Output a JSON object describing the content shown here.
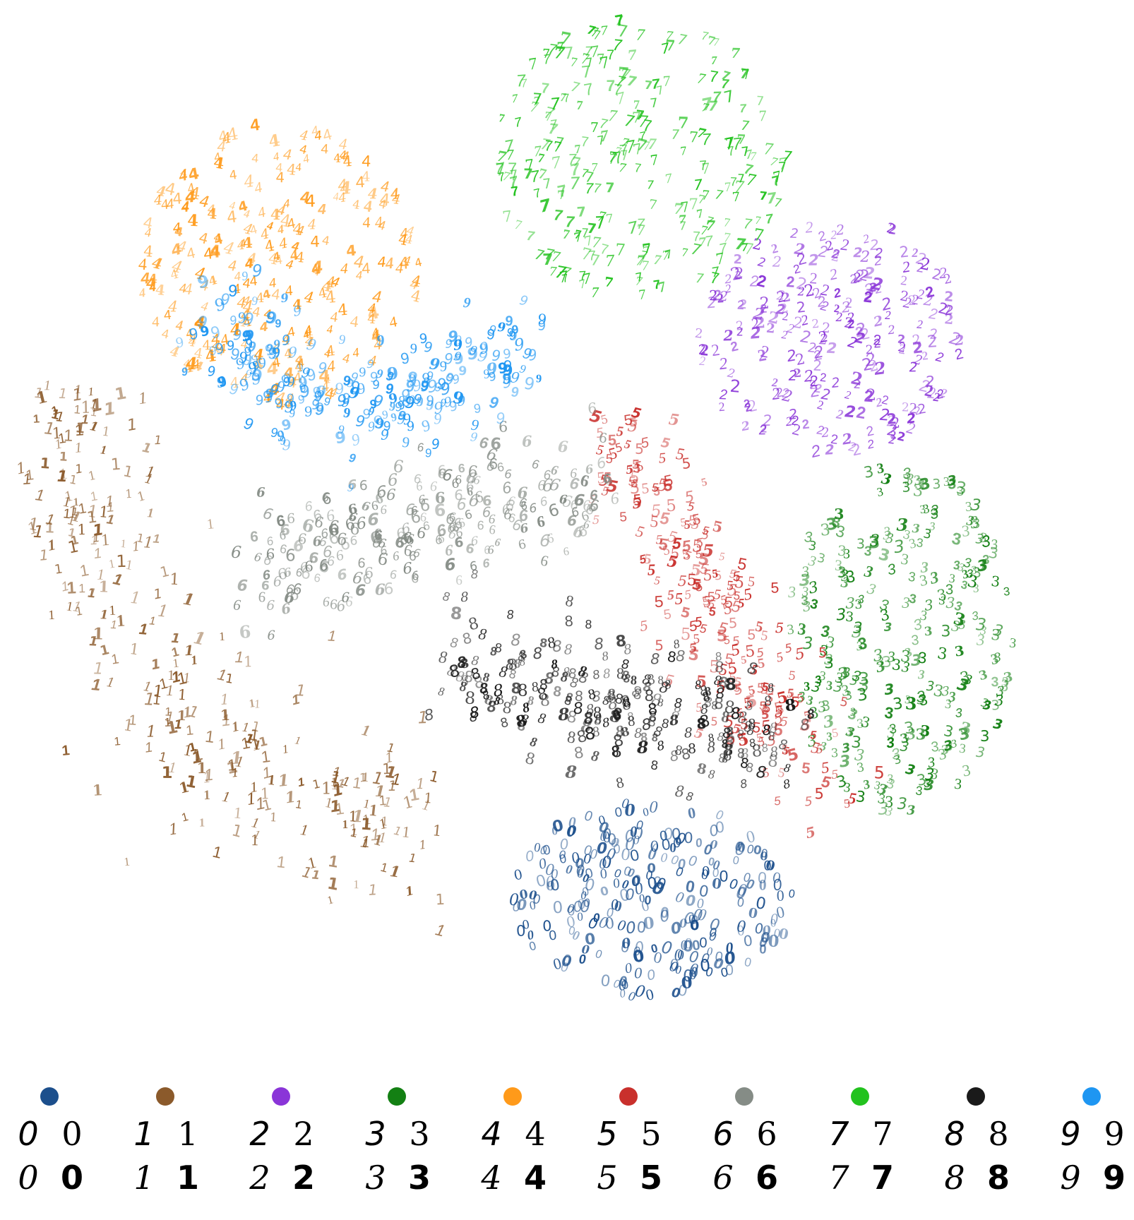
{
  "chart_data": {
    "type": "scatter",
    "title": "",
    "xlabel": "",
    "ylabel": "",
    "grid": false,
    "axes_visible": false,
    "marker": "digit glyph",
    "legend_position": "bottom",
    "series": [
      {
        "name": "0",
        "glyph": "0",
        "color": "#1c4f8c",
        "center": [
          920,
          1280
        ],
        "spread": [
          200,
          140
        ],
        "shape": "blob",
        "count": 260
      },
      {
        "name": "1",
        "glyph": "1",
        "color": "#8b5a2b",
        "center": [
          300,
          940
        ],
        "spread": [
          210,
          330
        ],
        "shape": "arc",
        "count": 300
      },
      {
        "name": "2",
        "glyph": "2",
        "color": "#8a35d8",
        "center": [
          1170,
          480
        ],
        "spread": [
          190,
          170
        ],
        "shape": "blob",
        "count": 240
      },
      {
        "name": "3",
        "glyph": "3",
        "color": "#138013",
        "center": [
          1270,
          910
        ],
        "spread": [
          160,
          250
        ],
        "shape": "blob",
        "count": 270
      },
      {
        "name": "4",
        "glyph": "4",
        "color": "#ff9a1a",
        "center": [
          390,
          380
        ],
        "spread": [
          200,
          200
        ],
        "shape": "blob",
        "count": 260
      },
      {
        "name": "5",
        "glyph": "5",
        "color": "#c9302c",
        "center": [
          1000,
          860
        ],
        "spread": [
          150,
          260
        ],
        "shape": "band",
        "count": 220
      },
      {
        "name": "6",
        "glyph": "6",
        "color": "#858c86",
        "center": [
          590,
          750
        ],
        "spread": [
          240,
          100
        ],
        "shape": "band",
        "count": 230
      },
      {
        "name": "7",
        "glyph": "7",
        "color": "#22c21e",
        "center": [
          900,
          230
        ],
        "spread": [
          210,
          200
        ],
        "shape": "blob",
        "count": 270
      },
      {
        "name": "8",
        "glyph": "8",
        "color": "#1a1a1a",
        "center": [
          860,
          1000
        ],
        "spread": [
          230,
          110
        ],
        "shape": "band",
        "count": 230
      },
      {
        "name": "9",
        "glyph": "9",
        "color": "#1e96f2",
        "center": [
          560,
          470
        ],
        "spread": [
          200,
          180
        ],
        "shape": "band",
        "count": 230
      }
    ]
  },
  "legend": [
    {
      "label": "0",
      "color": "#1c4f8c",
      "samples": [
        "0",
        "0",
        "0",
        "0"
      ]
    },
    {
      "label": "1",
      "color": "#8b5a2b",
      "samples": [
        "1",
        "1",
        "1",
        "1"
      ]
    },
    {
      "label": "2",
      "color": "#8a35d8",
      "samples": [
        "2",
        "2",
        "2",
        "2"
      ]
    },
    {
      "label": "3",
      "color": "#138013",
      "samples": [
        "3",
        "3",
        "3",
        "3"
      ]
    },
    {
      "label": "4",
      "color": "#ff9a1a",
      "samples": [
        "4",
        "4",
        "4",
        "4"
      ]
    },
    {
      "label": "5",
      "color": "#c9302c",
      "samples": [
        "5",
        "5",
        "5",
        "5"
      ]
    },
    {
      "label": "6",
      "color": "#858c86",
      "samples": [
        "6",
        "6",
        "6",
        "6"
      ]
    },
    {
      "label": "7",
      "color": "#22c21e",
      "samples": [
        "7",
        "7",
        "7",
        "7"
      ]
    },
    {
      "label": "8",
      "color": "#1a1a1a",
      "samples": [
        "8",
        "8",
        "8",
        "8"
      ]
    },
    {
      "label": "9",
      "color": "#1e96f2",
      "samples": [
        "9",
        "9",
        "9",
        "9"
      ]
    }
  ]
}
